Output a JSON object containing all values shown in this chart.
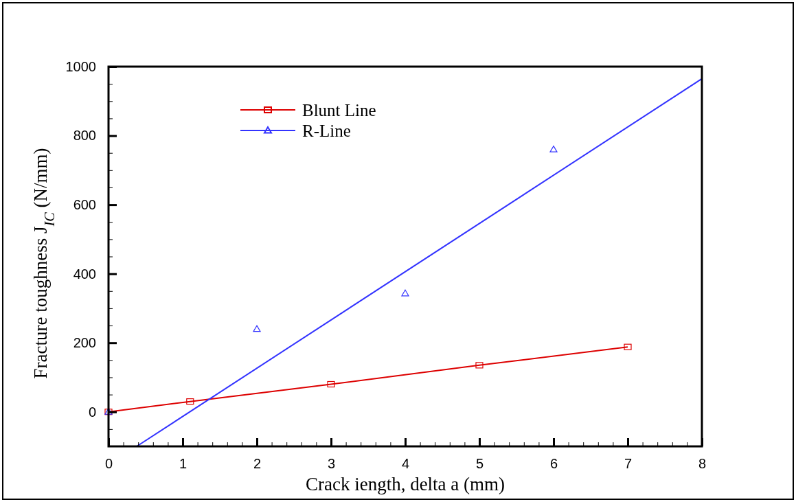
{
  "chart_data": {
    "type": "line",
    "xlabel": "Crack iength, delta a (mm)",
    "ylabel": "Fracture toughness J$_{IC}$ (N/mm)",
    "xlim": [
      0,
      8
    ],
    "ylim": [
      -100,
      1000
    ],
    "xticks": [
      0,
      {
        "value": 0.2,
        "label": null
      },
      {
        "value": 0.4,
        "label": null
      },
      {
        "value": 0.6,
        "label": null
      },
      {
        "value": 0.8,
        "label": null
      },
      1,
      {
        "value": 1.2,
        "label": null
      },
      {
        "value": 1.4,
        "label": null
      },
      {
        "value": 1.6,
        "label": null
      },
      {
        "value": 1.8,
        "label": null
      },
      2,
      {
        "value": 2.2,
        "label": null
      },
      {
        "value": 2.4,
        "label": null
      },
      {
        "value": 2.6,
        "label": null
      },
      {
        "value": 2.8,
        "label": null
      },
      3,
      {
        "value": 3.2,
        "label": null
      },
      {
        "value": 3.4,
        "label": null
      },
      {
        "value": 3.6,
        "label": null
      },
      {
        "value": 3.8,
        "label": null
      },
      4,
      {
        "value": 4.2,
        "label": null
      },
      {
        "value": 4.4,
        "label": null
      },
      {
        "value": 4.6,
        "label": null
      },
      {
        "value": 4.8,
        "label": null
      },
      5,
      {
        "value": 5.2,
        "label": null
      },
      {
        "value": 5.4,
        "label": null
      },
      {
        "value": 5.6,
        "label": null
      },
      {
        "value": 5.8,
        "label": null
      },
      6,
      {
        "value": 6.2,
        "label": null
      },
      {
        "value": 6.4,
        "label": null
      },
      {
        "value": 6.6,
        "label": null
      },
      {
        "value": 6.8,
        "label": null
      },
      7,
      {
        "value": 7.2,
        "label": null
      },
      {
        "value": 7.4,
        "label": null
      },
      {
        "value": 7.6,
        "label": null
      },
      {
        "value": 7.8,
        "label": null
      },
      8
    ],
    "yticks": [
      {
        "value": -50,
        "label": null
      },
      0,
      {
        "value": 50,
        "label": null
      },
      {
        "value": 100,
        "label": null
      },
      {
        "value": 150,
        "label": null
      },
      200,
      {
        "value": 250,
        "label": null
      },
      {
        "value": 300,
        "label": null
      },
      {
        "value": 350,
        "label": null
      },
      400,
      {
        "value": 450,
        "label": null
      },
      {
        "value": 500,
        "label": null
      },
      {
        "value": 550,
        "label": null
      },
      600,
      {
        "value": 650,
        "label": null
      },
      {
        "value": 700,
        "label": null
      },
      {
        "value": 750,
        "label": null
      },
      800,
      {
        "value": 850,
        "label": null
      },
      {
        "value": 900,
        "label": null
      },
      {
        "value": 950,
        "label": null
      },
      1000
    ],
    "grid": false,
    "legend": "top left",
    "series": [
      {
        "name": "Blunt Line",
        "color": "#dd0000",
        "marker": "square",
        "x": [
          0,
          1.1,
          3,
          5,
          7
        ],
        "values": [
          0,
          30,
          80,
          135,
          188
        ]
      },
      {
        "name": "R-Line",
        "type": "scatter",
        "color": "#3333ff",
        "marker": "triangle",
        "x": [
          0,
          2,
          4,
          6
        ],
        "values": [
          0,
          240,
          343,
          760
        ]
      },
      {
        "type": "line",
        "color": "#3333ff",
        "marker": "none",
        "x": [
          0.38,
          8
        ],
        "values": [
          -100,
          965
        ]
      }
    ]
  }
}
